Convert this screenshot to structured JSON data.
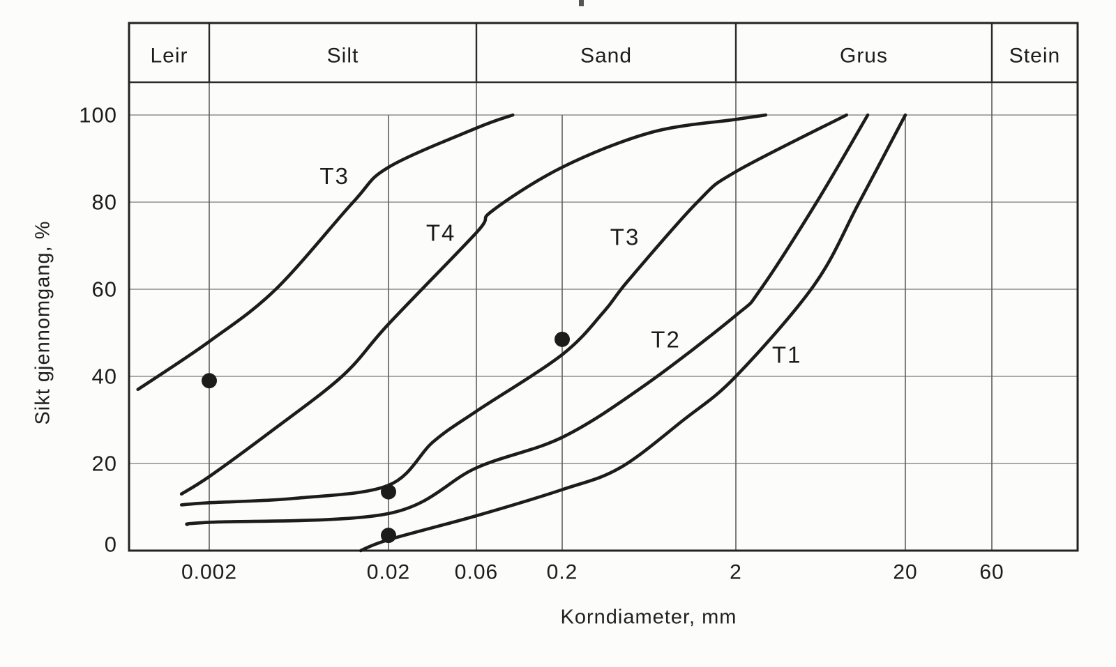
{
  "figure": {
    "background": "#fcfcfa",
    "ink": "#1c1c1c",
    "border_color": "#222222",
    "vgrid_color": "#5f5f5f",
    "hgrid_color": "#8e8e8e",
    "band_line_color": "#2b2b2b"
  },
  "chart_data": {
    "type": "line",
    "title": "",
    "xlabel": "Korndiameter, mm",
    "ylabel": "Sikt gjennomgang, %",
    "x_scale": "log",
    "ylim": [
      0,
      100
    ],
    "grid": true,
    "legend_position": "none",
    "y_ticks": [
      0,
      20,
      40,
      60,
      80,
      100
    ],
    "x_ticks": [
      {
        "value": 0.002,
        "label": "0.002"
      },
      {
        "value": 0.02,
        "label": "0.02"
      },
      {
        "value": 0.06,
        "label": "0.06"
      },
      {
        "value": 0.2,
        "label": "0.2"
      },
      {
        "value": 2,
        "label": "2"
      },
      {
        "value": 20,
        "label": "20"
      },
      {
        "value": 60,
        "label": "60"
      }
    ],
    "bands": [
      {
        "label": "Leir",
        "from": null,
        "to": 0.002
      },
      {
        "label": "Silt",
        "from": 0.002,
        "to": 0.06
      },
      {
        "label": "Sand",
        "from": 0.06,
        "to": 2
      },
      {
        "label": "Grus",
        "from": 2,
        "to": 60
      },
      {
        "label": "Stein",
        "from": 60,
        "to": null
      }
    ],
    "band_boundaries": [
      0.002,
      0.06,
      2,
      60
    ],
    "series": [
      {
        "id": "t3-silt",
        "label": "T3",
        "label_at": [
          0.01,
          86
        ],
        "points": [
          [
            0.0008,
            37
          ],
          [
            0.002,
            48
          ],
          [
            0.0047,
            60
          ],
          [
            0.0127,
            80
          ],
          [
            0.02,
            88
          ],
          [
            0.06,
            97
          ],
          [
            0.1,
            100
          ]
        ]
      },
      {
        "id": "t4",
        "label": "T4",
        "label_at": [
          0.0385,
          73
        ],
        "points": [
          [
            0.0014,
            13
          ],
          [
            0.002,
            17
          ],
          [
            0.0043,
            27
          ],
          [
            0.011,
            40
          ],
          [
            0.02,
            52
          ],
          [
            0.06,
            73
          ],
          [
            0.075,
            78
          ],
          [
            0.2,
            88
          ],
          [
            0.65,
            96
          ],
          [
            2,
            99
          ],
          [
            3,
            100
          ]
        ]
      },
      {
        "id": "t3-sand",
        "label": "T3",
        "label_at": [
          0.46,
          72
        ],
        "points": [
          [
            0.0014,
            10.5
          ],
          [
            0.002,
            11
          ],
          [
            0.006,
            12
          ],
          [
            0.02,
            15
          ],
          [
            0.035,
            25
          ],
          [
            0.06,
            32
          ],
          [
            0.2,
            45
          ],
          [
            0.35,
            55
          ],
          [
            0.48,
            62
          ],
          [
            1.2,
            80
          ],
          [
            2,
            87
          ],
          [
            9,
            100
          ]
        ]
      },
      {
        "id": "t2",
        "label": "T2",
        "label_at": [
          0.79,
          48.5
        ],
        "points": [
          [
            0.0015,
            6
          ],
          [
            0.002,
            6.5
          ],
          [
            0.02,
            8.5
          ],
          [
            0.06,
            19
          ],
          [
            0.2,
            26
          ],
          [
            0.6,
            38
          ],
          [
            2,
            54
          ],
          [
            2.8,
            60
          ],
          [
            6,
            80
          ],
          [
            12,
            100
          ]
        ]
      },
      {
        "id": "t1",
        "label": "T1",
        "label_at": [
          4.0,
          45
        ],
        "points": [
          [
            0.014,
            0
          ],
          [
            0.02,
            2.5
          ],
          [
            0.06,
            8
          ],
          [
            0.2,
            14
          ],
          [
            0.43,
            19
          ],
          [
            1,
            30
          ],
          [
            2,
            40
          ],
          [
            5.8,
            61
          ],
          [
            10.7,
            80
          ],
          [
            20,
            100
          ]
        ]
      }
    ],
    "markers": [
      {
        "x": 0.002,
        "y": 39
      },
      {
        "x": 0.02,
        "y": 13.5
      },
      {
        "x": 0.02,
        "y": 3.5
      },
      {
        "x": 0.2,
        "y": 48.5
      }
    ]
  }
}
